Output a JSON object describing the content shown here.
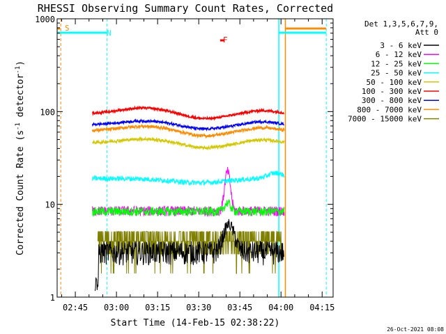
{
  "chart_data": {
    "type": "line",
    "title": "RHESSI Observing Summary Count Rates, Corrected",
    "xlabel": "Start Time (14-Feb-15 02:38:22)",
    "ylabel": "Corrected Count Rate (s",
    "ylabel_sup1": "-1",
    "ylabel_mid": " detector",
    "ylabel_sup2": "-1",
    "ylabel_end": ")",
    "yscale": "log",
    "ylim": [
      1,
      1000
    ],
    "yticks": [
      {
        "v": 1,
        "label": "1"
      },
      {
        "v": 10,
        "label": "10"
      },
      {
        "v": 100,
        "label": "100"
      },
      {
        "v": 1000,
        "label": "1000"
      }
    ],
    "xlim_min": [
      38.37,
      139.0
    ],
    "xticks": [
      {
        "m": 45,
        "label": "02:45"
      },
      {
        "m": 60,
        "label": "03:00"
      },
      {
        "m": 75,
        "label": "03:15"
      },
      {
        "m": 90,
        "label": "03:30"
      },
      {
        "m": 105,
        "label": "03:45"
      },
      {
        "m": 120,
        "label": "04:00"
      },
      {
        "m": 135,
        "label": "04:15"
      }
    ],
    "legend_header": [
      "Det 1,3,5,6,7,9,",
      "Att 0"
    ],
    "legend_placement": "right",
    "series": [
      {
        "name": "3 - 6 keV",
        "color": "#000000"
      },
      {
        "name": "6 - 12 keV",
        "color": "#ff00ff"
      },
      {
        "name": "12 - 25 keV",
        "color": "#00ff00"
      },
      {
        "name": "25 - 50 keV",
        "color": "#00ffff"
      },
      {
        "name": "50 - 100 keV",
        "color": "#d4c800"
      },
      {
        "name": "100 - 300 keV",
        "color": "#ff0000"
      },
      {
        "name": "300 - 800 keV",
        "color": "#0000ff"
      },
      {
        "name": "800 - 7000 keV",
        "color": "#ff8c00"
      },
      {
        "name": "7000 - 15000 keV",
        "color": "#808000"
      }
    ],
    "flag_labels": [
      {
        "text": "S",
        "color": "#ff8c00"
      },
      {
        "text": "N",
        "color": "#00ffff"
      },
      {
        "text": "F",
        "color": "#ff0000"
      }
    ],
    "footer": "26-Oct-2021 08:08"
  }
}
